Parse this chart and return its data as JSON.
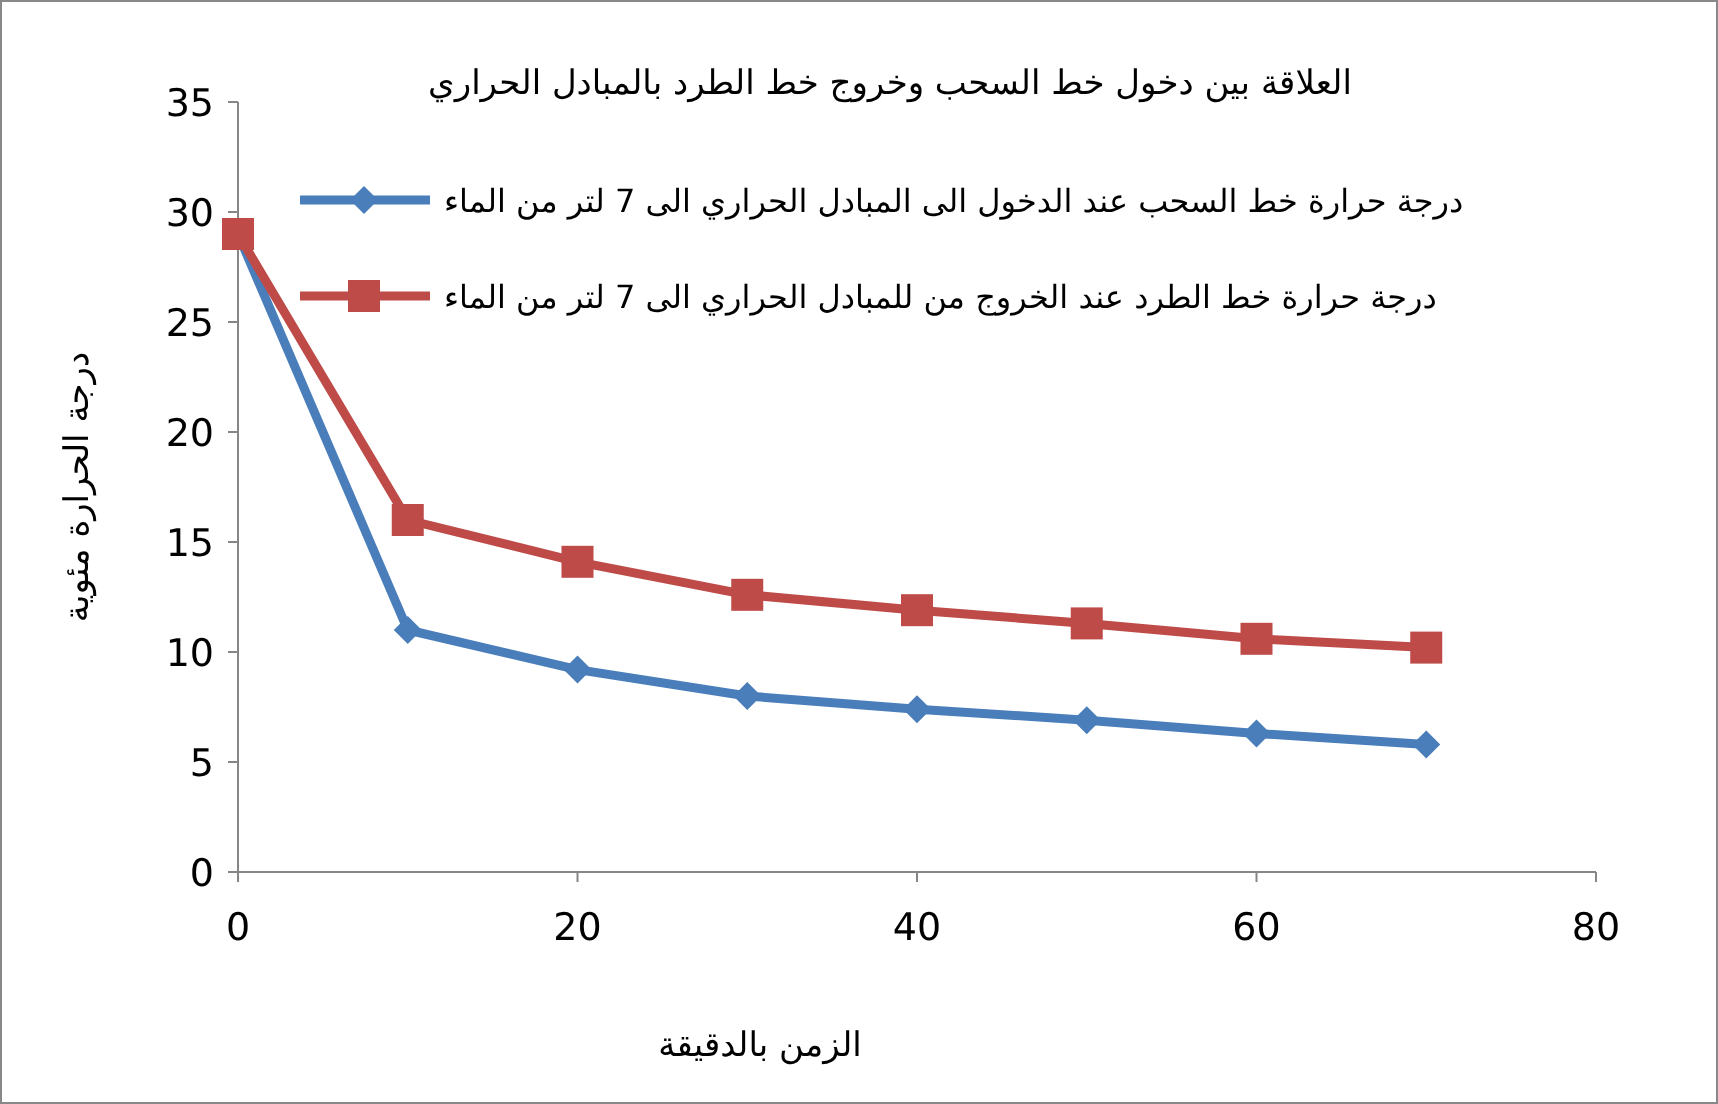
{
  "chart_data": {
    "type": "line",
    "title": "العلاقة بين دخول خط السحب  وخروج خط الطرد بالمبادل الحراري",
    "xlabel": "الزمن بالدقيقة",
    "ylabel": "درجة الحرارة مئوية",
    "x": [
      0,
      10,
      20,
      30,
      40,
      50,
      60,
      70
    ],
    "series": [
      {
        "name": "درجة حرارة خط السحب عند الدخول الى المبادل الحراري الى 7 لتر من الماء",
        "color": "#4a7ebb",
        "marker": "diamond",
        "values": [
          29,
          11,
          9.2,
          8,
          7.4,
          6.9,
          6.3,
          5.8
        ]
      },
      {
        "name": "درجة حرارة خط الطرد عند الخروج من للمبادل الحراري الى 7 لتر من الماء",
        "color": "#be4b48",
        "marker": "square",
        "values": [
          29,
          16,
          14.1,
          12.6,
          11.9,
          11.3,
          10.6,
          10.2
        ]
      }
    ],
    "xlim": [
      0,
      80
    ],
    "xticks": [
      0,
      20,
      40,
      60,
      80
    ],
    "ylim": [
      0,
      35
    ],
    "yticks": [
      0,
      5,
      10,
      15,
      20,
      25,
      30,
      35
    ],
    "grid": false,
    "legend": "top right",
    "line_style": "solid"
  }
}
